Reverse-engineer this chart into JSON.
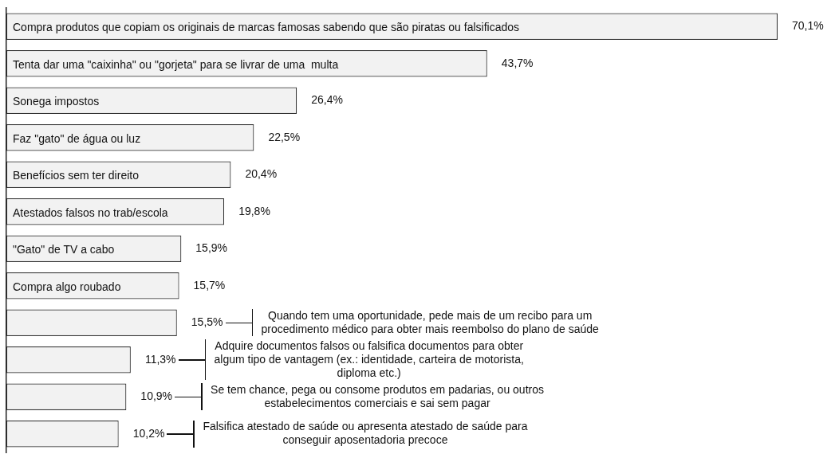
{
  "chart_data": {
    "type": "bar",
    "orientation": "horizontal",
    "color": "#f2f2f2",
    "categories": [
      "Compra produtos que copiam os originais de marcas famosas sabendo que são piratas ou falsificados",
      "Tenta dar uma \"caixinha\" ou \"gorjeta\" para se livrar de uma  multa",
      "Sonega impostos",
      "Faz \"gato\" de água ou luz",
      "Benefícios sem ter direito",
      "Atestados falsos no trab/escola",
      "\"Gato\" de TV a cabo",
      "Compra algo roubado",
      "Quando tem uma oportunidade, pede mais de um recibo para um procedimento médico para obter mais reembolso do plano de saúde",
      "Adquire documentos falsos ou falsifica documentos para obter algum tipo de vantagem (ex.: identidade, carteira de motorista, diploma etc.)",
      "Se tem chance, pega ou consome produtos em padarias, ou outros estabelecimentos comerciais e sai sem pagar",
      "Falsifica atestado de saúde ou apresenta atestado de saúde para conseguir aposentadoria precoce"
    ],
    "values": [
      70.1,
      43.7,
      26.4,
      22.5,
      20.4,
      19.8,
      15.9,
      15.7,
      15.5,
      11.3,
      10.9,
      10.2
    ],
    "value_labels": [
      "70,1%",
      "43,7%",
      "26,4%",
      "22,5%",
      "20,4%",
      "19,8%",
      "15,9%",
      "15,7%",
      "15,5%",
      "11,3%",
      "10,9%",
      "10,2%"
    ],
    "legend": false
  }
}
